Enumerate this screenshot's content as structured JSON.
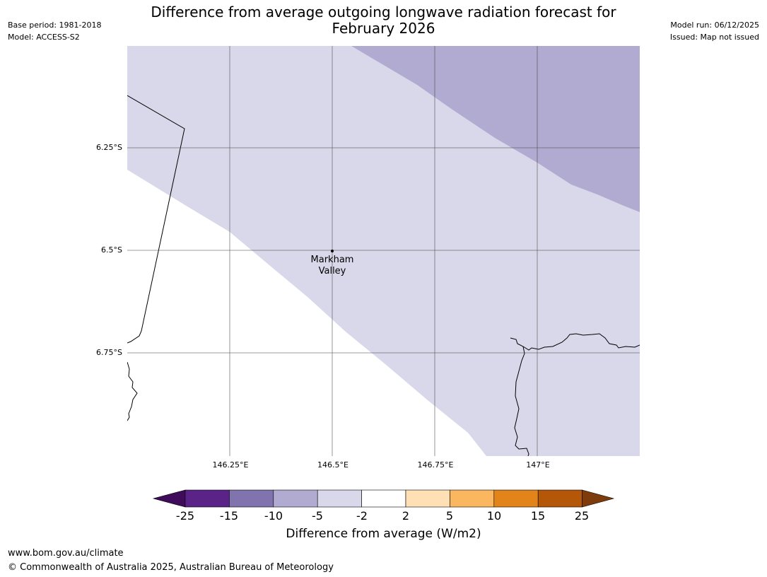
{
  "header": {
    "title_line1": "Difference from average outgoing longwave radiation forecast for",
    "title_line2": "February 2026",
    "base_period": "Base period: 1981-2018",
    "model": "Model: ACCESS-S2",
    "model_run": "Model run: 06/12/2025",
    "issued": "Issued: Map not issued"
  },
  "map": {
    "lat_labels": [
      "6.25°S",
      "6.5°S",
      "6.75°S"
    ],
    "lon_labels": [
      "146.25°E",
      "146.5°E",
      "146.75°E",
      "147°E"
    ],
    "place": {
      "name_line1": "Markham",
      "name_line2": "Valley"
    },
    "region_colors": {
      "light": "#d8d8ea",
      "medium": "#b1abd2"
    }
  },
  "colorbar": {
    "label": "Difference from average (W/m2)",
    "ticks": [
      "-25",
      "-15",
      "-10",
      "-5",
      "-2",
      "2",
      "5",
      "10",
      "15",
      "25"
    ],
    "colors": [
      "#3f0b5a",
      "#5b2287",
      "#8073ae",
      "#b1abd2",
      "#d8d8ea",
      "#ffffff",
      "#fee0b4",
      "#fbb760",
      "#e2841a",
      "#b45708",
      "#7e3b0c"
    ]
  },
  "footer": {
    "url": "www.bom.gov.au/climate",
    "copyright": "© Commonwealth of Australia 2025, Australian Bureau of Meteorology"
  }
}
